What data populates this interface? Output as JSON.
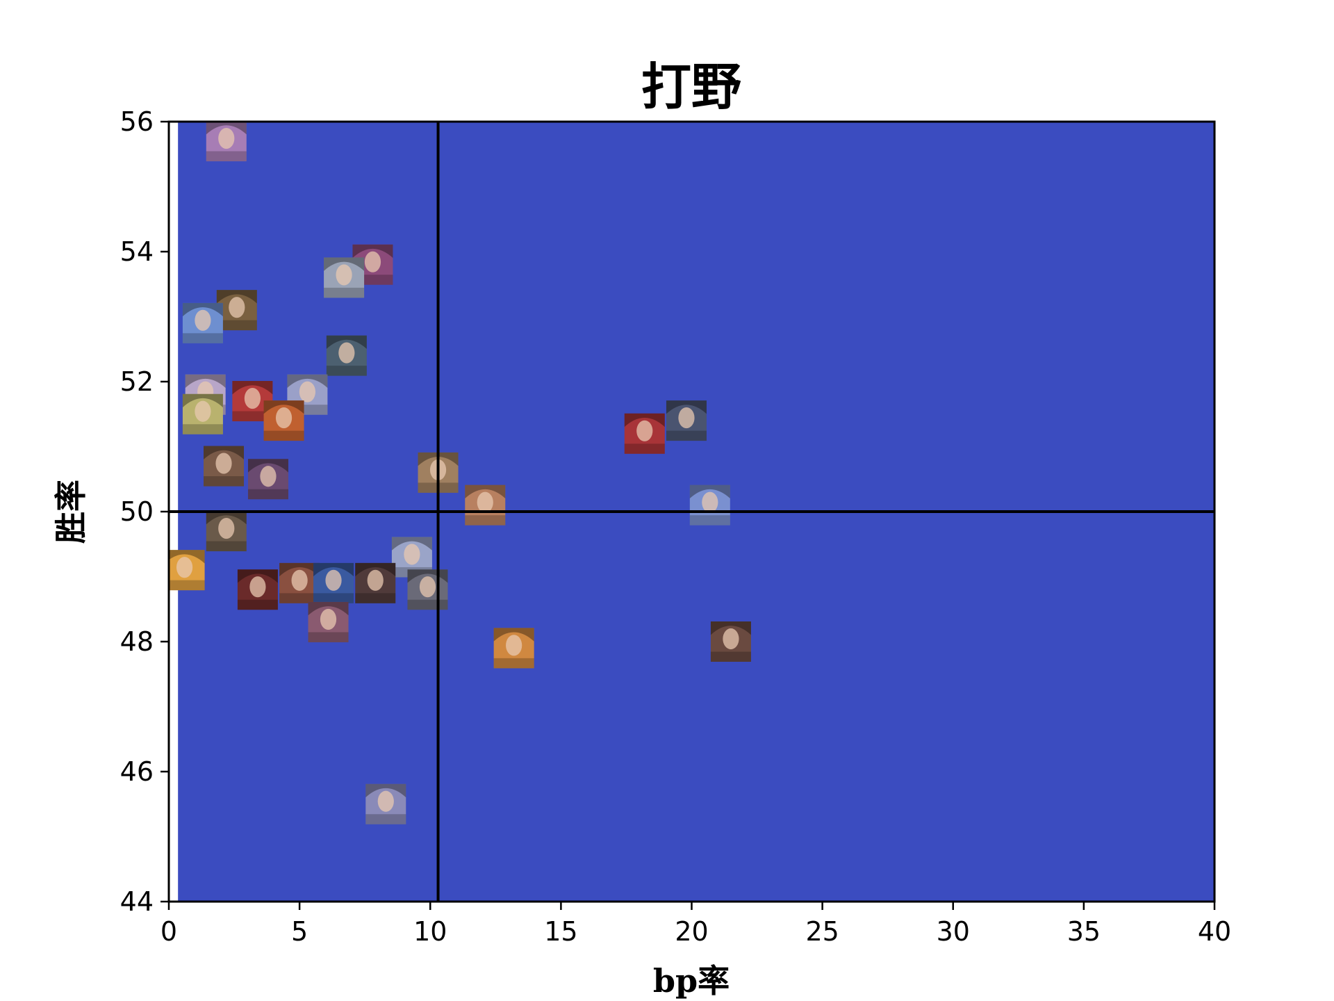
{
  "chart_data": {
    "type": "scatter",
    "title": "打野",
    "xlabel": "bp率",
    "ylabel": "胜率",
    "xlim": [
      0,
      40
    ],
    "ylim": [
      44,
      56
    ],
    "x_ticks": [
      "0",
      "5",
      "10",
      "15",
      "20",
      "25",
      "30",
      "35",
      "40"
    ],
    "y_ticks": [
      "44",
      "46",
      "48",
      "50",
      "52",
      "54",
      "56"
    ],
    "reference_lines": {
      "vertical_x": 10.3,
      "horizontal_y": 50
    },
    "background": {
      "type": "contour",
      "formula": "bp * (winrate - 40)",
      "levels": [
        0,
        6,
        19,
        43,
        58,
        90,
        10000
      ],
      "colors": [
        "#3b4cc0",
        "#6788ee",
        "#c5d6f2",
        "#f4c6b0",
        "#e7745b",
        "#b40426"
      ]
    },
    "points": [
      {
        "x": 2.2,
        "y": 55.7,
        "color": "#a77db5"
      },
      {
        "x": 7.8,
        "y": 53.8,
        "color": "#8c4a7a"
      },
      {
        "x": 6.7,
        "y": 53.6,
        "color": "#9aa3b6"
      },
      {
        "x": 2.6,
        "y": 53.1,
        "color": "#7a6040"
      },
      {
        "x": 1.3,
        "y": 52.9,
        "color": "#6e8fd0"
      },
      {
        "x": 6.8,
        "y": 52.4,
        "color": "#4c6070"
      },
      {
        "x": 1.4,
        "y": 51.8,
        "color": "#b8a6c8"
      },
      {
        "x": 3.2,
        "y": 51.7,
        "color": "#b43a3a"
      },
      {
        "x": 5.3,
        "y": 51.8,
        "color": "#9aa0c8"
      },
      {
        "x": 1.3,
        "y": 51.5,
        "color": "#b9b26e"
      },
      {
        "x": 4.4,
        "y": 51.4,
        "color": "#c06030"
      },
      {
        "x": 18.2,
        "y": 51.2,
        "color": "#a83438"
      },
      {
        "x": 19.8,
        "y": 51.4,
        "color": "#4a5470"
      },
      {
        "x": 2.1,
        "y": 50.7,
        "color": "#7a5a48"
      },
      {
        "x": 3.8,
        "y": 50.5,
        "color": "#6a4a70"
      },
      {
        "x": 10.3,
        "y": 50.6,
        "color": "#a08060"
      },
      {
        "x": 12.1,
        "y": 50.1,
        "color": "#b88060"
      },
      {
        "x": 20.7,
        "y": 50.1,
        "color": "#7a90d0"
      },
      {
        "x": 2.2,
        "y": 49.7,
        "color": "#6a5a4a"
      },
      {
        "x": 0.6,
        "y": 49.1,
        "color": "#e0a040"
      },
      {
        "x": 9.3,
        "y": 49.3,
        "color": "#9aa4c8"
      },
      {
        "x": 3.4,
        "y": 48.8,
        "color": "#6a2a2a"
      },
      {
        "x": 5.0,
        "y": 48.9,
        "color": "#8a5040"
      },
      {
        "x": 6.3,
        "y": 48.9,
        "color": "#3a5aa0"
      },
      {
        "x": 7.9,
        "y": 48.9,
        "color": "#503a3a"
      },
      {
        "x": 9.9,
        "y": 48.8,
        "color": "#6a6a78"
      },
      {
        "x": 6.1,
        "y": 48.3,
        "color": "#8a5a70"
      },
      {
        "x": 13.2,
        "y": 47.9,
        "color": "#d08840"
      },
      {
        "x": 21.5,
        "y": 48.0,
        "color": "#6a4a40"
      },
      {
        "x": 8.3,
        "y": 45.5,
        "color": "#8a8ab8"
      }
    ]
  }
}
